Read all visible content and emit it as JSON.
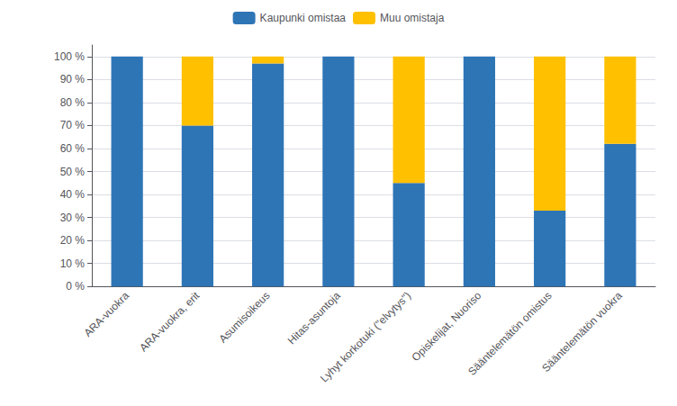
{
  "chart_data": {
    "type": "bar",
    "stacked": true,
    "categories": [
      "ARA-vuokra",
      "ARA-vuokra, erit",
      "Asumisoikeus",
      "Hitas-asuntoja",
      "Lyhyt korkotuki (\"elvytys\")",
      "Opiskelijat, Nuoriso",
      "Sääntelemätön omistus",
      "Sääntelemätön vuokra"
    ],
    "series": [
      {
        "name": "Kaupunki omistaa",
        "color": "#2E75B6",
        "values": [
          100,
          70,
          97,
          100,
          45,
          100,
          33,
          62
        ]
      },
      {
        "name": "Muu omistaja",
        "color": "#FFC000",
        "values": [
          0,
          30,
          3,
          0,
          55,
          0,
          67,
          38
        ]
      }
    ],
    "ylim": [
      0,
      105
    ],
    "yticks": [
      {
        "value": 0,
        "label": "0 %"
      },
      {
        "value": 10,
        "label": "10 %"
      },
      {
        "value": 20,
        "label": "20 %"
      },
      {
        "value": 30,
        "label": "30 %"
      },
      {
        "value": 40,
        "label": "40 %"
      },
      {
        "value": 50,
        "label": "50 %"
      },
      {
        "value": 60,
        "label": "60 %"
      },
      {
        "value": 70,
        "label": "70 %"
      },
      {
        "value": 80,
        "label": "80 %"
      },
      {
        "value": 90,
        "label": "90 %"
      },
      {
        "value": 100,
        "label": "100 %"
      }
    ],
    "grid": true,
    "legend": "top"
  }
}
